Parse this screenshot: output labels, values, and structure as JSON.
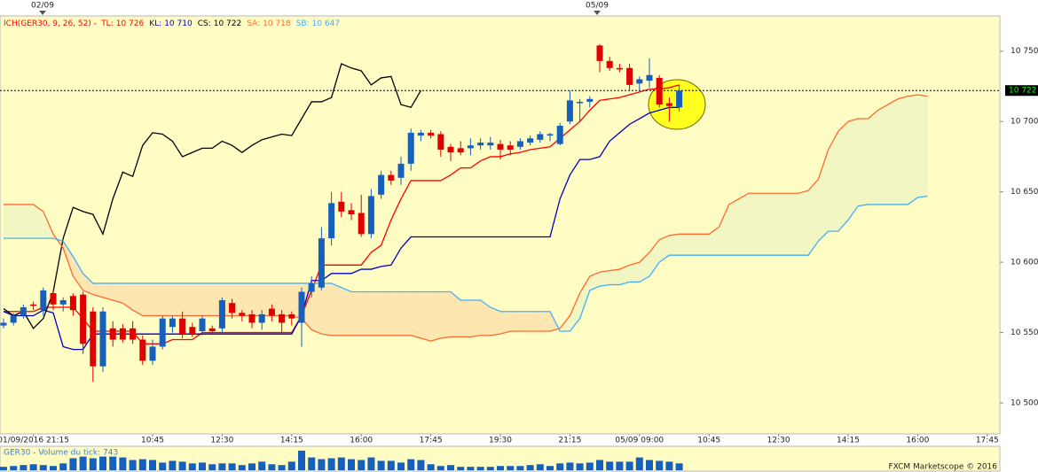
{
  "chart_data": {
    "type": "candlestick",
    "top_dates": [
      "02/09",
      "05/09"
    ],
    "indicator": "ICH(GER30, 9, 26, 52) -",
    "categories": [
      null,
      null,
      null,
      "01/09/2016 21:15",
      null,
      null,
      null,
      null,
      null,
      null,
      null,
      null,
      null,
      null,
      null,
      "10:45",
      null,
      null,
      null,
      null,
      null,
      null,
      "12:30",
      null,
      null,
      null,
      null,
      null,
      null,
      "14:15",
      null,
      null,
      null,
      null,
      null,
      null,
      "16:00",
      null,
      null,
      null,
      null,
      null,
      null,
      "17:45",
      null,
      null,
      null,
      null,
      null,
      null,
      "19:30",
      null,
      null,
      null,
      null,
      null,
      null,
      "21:15",
      null,
      null,
      null,
      null,
      null,
      null,
      "05/09 09:00",
      null,
      null,
      null,
      null,
      null,
      null,
      "10:45",
      null,
      null,
      null,
      null,
      null,
      null,
      "12:30",
      null,
      null,
      null,
      null,
      null,
      null,
      "14:15",
      null,
      null,
      null,
      null,
      null,
      null,
      "16:00",
      null,
      null,
      null,
      null,
      null,
      null,
      "17:45"
    ],
    "ohlc": [
      [
        10555,
        10560,
        10553,
        10557
      ],
      [
        10557,
        10564,
        10555,
        10562
      ],
      [
        10562,
        10570,
        10560,
        10568
      ],
      [
        10570,
        10572,
        10566,
        10569
      ],
      [
        10566,
        10582,
        10562,
        10580
      ],
      [
        10578,
        10580,
        10566,
        10570
      ],
      [
        10570,
        10575,
        10565,
        10573
      ],
      [
        10576,
        10578,
        10562,
        10566
      ],
      [
        10577,
        10579,
        10535,
        10542
      ],
      [
        10565,
        10568,
        10515,
        10526
      ],
      [
        10526,
        10568,
        10522,
        10565
      ],
      [
        10553,
        10558,
        10540,
        10545
      ],
      [
        10553,
        10556,
        10543,
        10545
      ],
      [
        10553,
        10558,
        10542,
        10545
      ],
      [
        10545,
        10548,
        10527,
        10530
      ],
      [
        10530,
        10545,
        10527,
        10540
      ],
      [
        10540,
        10562,
        10538,
        10560
      ],
      [
        10554,
        10562,
        10550,
        10560
      ],
      [
        10560,
        10565,
        10546,
        10549
      ],
      [
        10554,
        10557,
        10547,
        10549
      ],
      [
        10551,
        10562,
        10548,
        10560
      ],
      [
        10553,
        10555,
        10549,
        10551
      ],
      [
        10553,
        10575,
        10550,
        10573
      ],
      [
        10571,
        10574,
        10560,
        10564
      ],
      [
        10564,
        10566,
        10558,
        10562
      ],
      [
        10563,
        10566,
        10553,
        10557
      ],
      [
        10557,
        10566,
        10552,
        10563
      ],
      [
        10567,
        10570,
        10558,
        10562
      ],
      [
        10563,
        10566,
        10550,
        10557
      ],
      [
        10563,
        10565,
        10555,
        10560
      ],
      [
        10557,
        10582,
        10540,
        10579
      ],
      [
        10579,
        10590,
        10575,
        10585
      ],
      [
        10582,
        10625,
        10580,
        10617
      ],
      [
        10617,
        10650,
        10612,
        10642
      ],
      [
        10643,
        10650,
        10632,
        10636
      ],
      [
        10637,
        10642,
        10630,
        10634
      ],
      [
        10635,
        10648,
        10618,
        10620
      ],
      [
        10620,
        10652,
        10617,
        10647
      ],
      [
        10648,
        10665,
        10645,
        10662
      ],
      [
        10662,
        10665,
        10655,
        10658
      ],
      [
        10660,
        10675,
        10655,
        10670
      ],
      [
        10670,
        10695,
        10665,
        10692
      ],
      [
        10690,
        10694,
        10686,
        10692
      ],
      [
        10692,
        10694,
        10688,
        10690
      ],
      [
        10691,
        10693,
        10675,
        10680
      ],
      [
        10682,
        10684,
        10672,
        10678
      ],
      [
        10681,
        10686,
        10676,
        10678
      ],
      [
        10681,
        10688,
        10676,
        10683
      ],
      [
        10683,
        10688,
        10680,
        10685
      ],
      [
        10683,
        10689,
        10680,
        10685
      ],
      [
        10684,
        10687,
        10673,
        10680
      ],
      [
        10683,
        10686,
        10676,
        10680
      ],
      [
        10682,
        10688,
        10680,
        10686
      ],
      [
        10685,
        10690,
        10683,
        10688
      ],
      [
        10687,
        10693,
        10685,
        10691
      ],
      [
        10690,
        10692,
        10686,
        10691
      ],
      [
        10684,
        10699,
        10683,
        10697
      ],
      [
        10700,
        10722,
        10698,
        10715
      ],
      [
        10713,
        10716,
        10700,
        10714
      ],
      [
        10714,
        10718,
        10710,
        10716
      ],
      [
        10754,
        10755,
        10735,
        10743
      ],
      [
        10743,
        10746,
        10736,
        10738
      ],
      [
        10738,
        10741,
        10735,
        10737
      ],
      [
        10738,
        10741,
        10722,
        10726
      ],
      [
        10727,
        10732,
        10722,
        10730
      ],
      [
        10729,
        10745,
        10724,
        10733
      ],
      [
        10731,
        10733,
        10710,
        10712
      ],
      [
        10713,
        10717,
        10700,
        10711
      ],
      [
        10710,
        10726,
        10707,
        10722
      ],
      null,
      null,
      null,
      null,
      null,
      null,
      null,
      null,
      null,
      null,
      null,
      null,
      null,
      null,
      null,
      null,
      null,
      null,
      null,
      null,
      null,
      null,
      null,
      null,
      null,
      null,
      null,
      null,
      null,
      null,
      null
    ],
    "up_color": "#1560bd",
    "down_color": "#e00000",
    "series": [
      {
        "name": "TL:",
        "value_label": "10 726",
        "color": "#ff0000",
        "values": [
          10565,
          10565,
          10565,
          10565,
          10568,
          10568,
          10568,
          10568,
          10560,
          10551,
          10551,
          10551,
          10551,
          10551,
          10542,
          10542,
          10542,
          10545,
          10545,
          10545,
          10550,
          10550,
          10550,
          10550,
          10550,
          10550,
          10550,
          10550,
          10550,
          10550,
          10562,
          10580,
          10598,
          10598,
          10598,
          10598,
          10598,
          10607,
          10612,
          10630,
          10645,
          10658,
          10658,
          10658,
          10658,
          10662,
          10667,
          10667,
          10672,
          10675,
          10675,
          10677,
          10678,
          10680,
          10681,
          10682,
          10688,
          10694,
          10700,
          10708,
          10715,
          10716,
          10717,
          10719,
          10721,
          10723,
          10723,
          10724,
          10726,
          null,
          null,
          null,
          null,
          null,
          null,
          null,
          null,
          null,
          null,
          null,
          null,
          null,
          null,
          null,
          null,
          null,
          null,
          null,
          null,
          null,
          null,
          null,
          null,
          null,
          null,
          null,
          null,
          null,
          null,
          null
        ]
      },
      {
        "name": "KL:",
        "value_label": "10 710",
        "color": "#0000c0",
        "values": [
          10565,
          10562,
          10562,
          10562,
          10566,
          10564,
          10540,
          10538,
          10538,
          10549,
          10549,
          10549,
          10549,
          10549,
          10549,
          10549,
          10549,
          10549,
          10549,
          10549,
          10549,
          10549,
          10549,
          10549,
          10549,
          10549,
          10549,
          10549,
          10549,
          10549,
          10562,
          10587,
          10587,
          10592,
          10592,
          10592,
          10595,
          10595,
          10597,
          10598,
          10610,
          10618,
          10618,
          10618,
          10618,
          10618,
          10618,
          10618,
          10618,
          10618,
          10618,
          10618,
          10618,
          10618,
          10618,
          10618,
          10645,
          10662,
          10673,
          10673,
          10675,
          10686,
          10692,
          10698,
          10702,
          10706,
          10708,
          10710,
          10710,
          null,
          null,
          null,
          null,
          null,
          null,
          null,
          null,
          null,
          null,
          null,
          null,
          null,
          null,
          null,
          null,
          null,
          null,
          null,
          null,
          null,
          null,
          null,
          null,
          null,
          null,
          null,
          null,
          null,
          null,
          null
        ]
      },
      {
        "name": "CS:",
        "value_label": "10 722",
        "color": "#000000",
        "values": [
          10567,
          10562,
          10565,
          10553,
          10560,
          10579,
          10617,
          10639,
          10636,
          10634,
          10620,
          10645,
          10664,
          10661,
          10683,
          10692,
          10691,
          10686,
          10675,
          10678,
          10681,
          10681,
          10686,
          10683,
          10678,
          10683,
          10687,
          10689,
          10691,
          10690,
          10702,
          10714,
          10714,
          10717,
          10741,
          10738,
          10736,
          10726,
          10731,
          10732,
          10712,
          10710,
          10722,
          null,
          null,
          null,
          null,
          null,
          null,
          null,
          null,
          null,
          null,
          null,
          null,
          null,
          null,
          null,
          null,
          null,
          null,
          null,
          null,
          null,
          null,
          null,
          null,
          null,
          null,
          null,
          null,
          null,
          null,
          null,
          null,
          null,
          null,
          null,
          null,
          null,
          null,
          null,
          null,
          null,
          null,
          null,
          null,
          null,
          null,
          null,
          null,
          null,
          null,
          null,
          null,
          null,
          null,
          null,
          null,
          null
        ]
      },
      {
        "name": "SA:",
        "value_label": "10 718",
        "color": "#ff6a30",
        "values": [
          10641,
          10641,
          10641,
          10641,
          10636,
          10620,
          10610,
          10590,
          10580,
          10577,
          10575,
          10573,
          10571,
          10566,
          10562,
          10562,
          10562,
          10562,
          10562,
          10562,
          10562,
          10562,
          10562,
          10562,
          10562,
          10562,
          10562,
          10562,
          10562,
          10562,
          10560,
          10552,
          10549,
          10548,
          10548,
          10548,
          10548,
          10548,
          10548,
          10548,
          10548,
          10548,
          10546,
          10544,
          10546,
          10547,
          10547,
          10547,
          10548,
          10548,
          10549,
          10551,
          10551,
          10551,
          10551,
          10551,
          10553,
          10562,
          10578,
          10590,
          10593,
          10594,
          10595,
          10598,
          10600,
          10607,
          10616,
          10619,
          10620,
          10620,
          10620,
          10620,
          10625,
          10641,
          10645,
          10649,
          10649,
          10649,
          10649,
          10649,
          10649,
          10651,
          10659,
          10680,
          10693,
          10700,
          10702,
          10702,
          10708,
          10712,
          10716,
          10718,
          10719,
          10718,
          null,
          null,
          null,
          null,
          null,
          null
        ]
      },
      {
        "name": "SB:",
        "value_label": "10 647",
        "color": "#40b0ff",
        "values": [
          10617,
          10617,
          10617,
          10617,
          10617,
          10617,
          10615,
          10604,
          10592,
          10585,
          10585,
          10585,
          10585,
          10585,
          10585,
          10585,
          10585,
          10585,
          10585,
          10585,
          10585,
          10585,
          10585,
          10585,
          10585,
          10585,
          10585,
          10585,
          10585,
          10585,
          10585,
          10585,
          10585,
          10585,
          10582,
          10579,
          10579,
          10579,
          10579,
          10579,
          10579,
          10579,
          10579,
          10579,
          10579,
          10579,
          10573,
          10573,
          10573,
          10568,
          10565,
          10565,
          10565,
          10565,
          10565,
          10565,
          10551,
          10551,
          10560,
          10580,
          10583,
          10584,
          10584,
          10586,
          10586,
          10590,
          10600,
          10605,
          10605,
          10605,
          10605,
          10605,
          10605,
          10605,
          10605,
          10605,
          10605,
          10605,
          10605,
          10605,
          10605,
          10605,
          10615,
          10622,
          10622,
          10630,
          10640,
          10641,
          10641,
          10641,
          10641,
          10641,
          10646,
          10647,
          null,
          null,
          null,
          null,
          null,
          null
        ]
      }
    ],
    "cloud_colors": [
      "#f2f6c2",
      "#fde6b0"
    ],
    "ylim": [
      10478,
      10775
    ],
    "yticks": [
      {
        "value": 10500,
        "label": "10 500"
      },
      {
        "value": 10550,
        "label": "10 550"
      },
      {
        "value": 10600,
        "label": "10 600"
      },
      {
        "value": 10650,
        "label": "10 650"
      },
      {
        "value": 10700,
        "label": "10 700"
      },
      {
        "value": 10750,
        "label": "10 750"
      }
    ],
    "last_price": {
      "value": 10722,
      "label": "10 722"
    },
    "volume": {
      "title": "GER30 - Volume du tick: 743",
      "color": "#1560bd",
      "ylim": [
        0,
        2500
      ],
      "values": [
        370,
        460,
        560,
        650,
        560,
        460,
        740,
        1300,
        1480,
        1300,
        1480,
        1480,
        1390,
        1110,
        1200,
        1110,
        830,
        1020,
        930,
        740,
        830,
        650,
        740,
        740,
        560,
        740,
        930,
        650,
        560,
        930,
        2130,
        1390,
        1200,
        1300,
        1390,
        1200,
        1110,
        1390,
        1020,
        1020,
        830,
        1200,
        1110,
        650,
        460,
        560,
        370,
        370,
        370,
        370,
        460,
        460,
        460,
        560,
        650,
        460,
        740,
        830,
        740,
        830,
        1110,
        930,
        930,
        930,
        1390,
        1110,
        1020,
        930,
        743,
        null,
        null,
        null,
        null,
        null,
        null,
        null,
        null,
        null,
        null,
        null,
        null,
        null,
        null,
        null,
        null,
        null,
        null,
        null,
        null,
        null,
        null,
        null,
        null,
        null,
        null,
        null,
        null,
        null,
        null,
        null
      ]
    },
    "footer": "FXCM Marketscope © 2016"
  }
}
